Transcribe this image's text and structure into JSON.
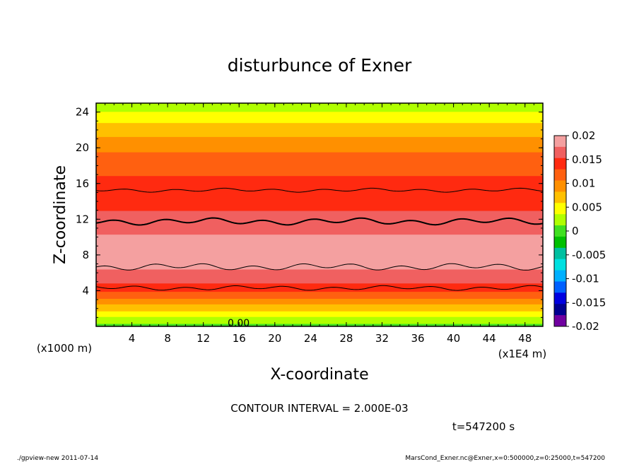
{
  "chart_data": {
    "type": "heatmap",
    "title": "disturbunce of Exner",
    "xlabel": "X-coordinate",
    "ylabel": "Z-coordinate",
    "x_unit": "(x1E4 m)",
    "y_unit": "(x1000 m)",
    "xlim": [
      0,
      50
    ],
    "ylim": [
      0,
      25
    ],
    "x_ticks": [
      4,
      8,
      12,
      16,
      20,
      24,
      28,
      32,
      36,
      40,
      44,
      48
    ],
    "y_ticks": [
      4,
      8,
      12,
      16,
      20,
      24
    ],
    "x_tick_labels": [
      "4",
      "8",
      "12",
      "16",
      "20",
      "24",
      "28",
      "32",
      "36",
      "40",
      "44",
      "48"
    ],
    "y_tick_labels": [
      "4",
      "8",
      "12",
      "16",
      "20",
      "24"
    ],
    "profile": {
      "z": [
        0,
        0.6,
        1.2,
        1.8,
        2.4,
        3.0,
        3.5,
        4.0,
        4.6,
        5.2,
        5.6,
        6.0,
        7.0,
        8.0,
        9.0,
        10.0,
        10.5,
        11.0,
        12.5,
        14.5,
        16.0,
        18.5,
        20.0,
        21.5,
        22.7,
        23.7,
        25.0
      ],
      "value": [
        0.0,
        0.002,
        0.004,
        0.006,
        0.008,
        0.01,
        0.012,
        0.013,
        0.015,
        0.016,
        0.0165,
        0.017,
        0.0185,
        0.019,
        0.0188,
        0.018,
        0.0173,
        0.0165,
        0.0155,
        0.0145,
        0.0135,
        0.012,
        0.01,
        0.008,
        0.006,
        0.004,
        0.0025
      ]
    },
    "contour_levels": [
      0.0,
      0.002,
      0.004,
      0.006,
      0.008,
      0.01,
      0.012,
      0.014,
      0.016,
      0.018
    ],
    "contour_zero_label": "0.00",
    "colorbar": {
      "min": -0.02,
      "max": 0.02,
      "tick_labels": [
        "0.02",
        "0.015",
        "0.01",
        "0.005",
        "0",
        "-0.005",
        "-0.01",
        "-0.015",
        "-0.02"
      ],
      "colors": [
        "#f4a0a0",
        "#f06060",
        "#ff2a10",
        "#ff6010",
        "#ff9000",
        "#ffc000",
        "#ffff00",
        "#b0ff00",
        "#40e020",
        "#00c000",
        "#00c0a0",
        "#00e0e0",
        "#00b0ff",
        "#0060ff",
        "#0000e0",
        "#000090",
        "#7000a0"
      ]
    },
    "contour_interval_text": "CONTOUR INTERVAL = 2.000E-03",
    "time_text": "t=547200 s"
  },
  "footer": {
    "left": "./gpview-new  2011-07-14",
    "right": "MarsCond_Exner.nc@Exner,x=0:500000,z=0:25000,t=547200"
  }
}
